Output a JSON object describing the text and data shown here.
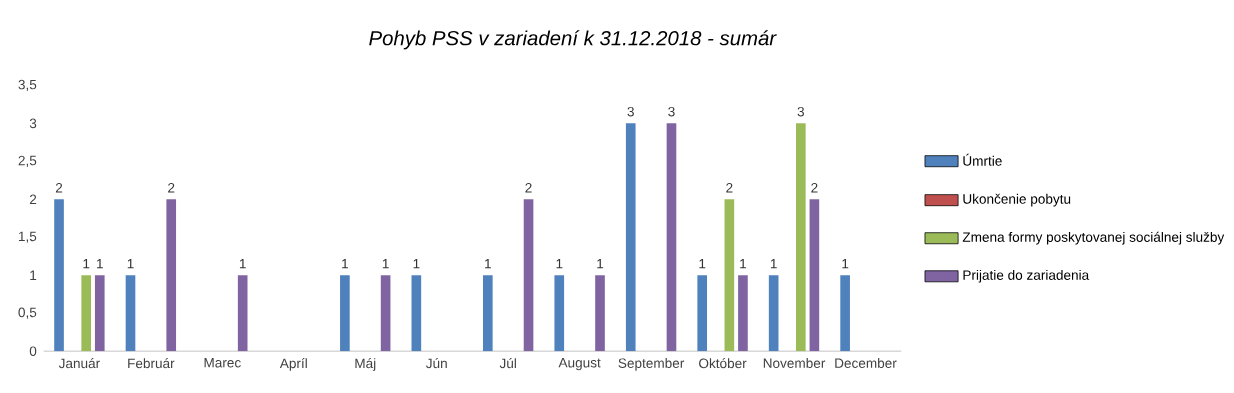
{
  "chart_data": {
    "type": "bar",
    "title": "Pohyb PSS v zariadení k 31.12.2018 - sumár",
    "categories": [
      "Január",
      "Február",
      "Marec",
      "Apríl",
      "Máj",
      "Jún",
      "Júl",
      "August",
      "September",
      "Október",
      "November",
      "December"
    ],
    "series": [
      {
        "name": "Úmrtie",
        "color": "#4f81bd",
        "values": [
          2,
          1,
          null,
          null,
          1,
          1,
          1,
          1,
          3,
          1,
          1,
          1
        ]
      },
      {
        "name": "Ukončenie pobytu",
        "color": "#c0504d",
        "values": [
          null,
          null,
          null,
          null,
          null,
          null,
          null,
          null,
          null,
          null,
          null,
          null
        ]
      },
      {
        "name": "Zmena formy poskytovanej sociálnej služby",
        "color": "#9bbb59",
        "values": [
          1,
          null,
          null,
          null,
          null,
          null,
          null,
          null,
          null,
          2,
          3,
          null
        ]
      },
      {
        "name": "Prijatie do zariadenia",
        "color": "#8064a2",
        "values": [
          1,
          2,
          1,
          null,
          1,
          null,
          2,
          1,
          3,
          1,
          2,
          null
        ]
      }
    ],
    "ylim": [
      0,
      3.5
    ],
    "yticks": [
      0,
      {
        "value": 0.5,
        "label": "0,5"
      },
      1,
      {
        "value": 1.5,
        "label": "1,5"
      },
      2,
      {
        "value": 2.5,
        "label": "2,5"
      },
      3,
      {
        "value": 3.5,
        "label": "3,5"
      }
    ],
    "data_labels": true,
    "legend": "right"
  }
}
